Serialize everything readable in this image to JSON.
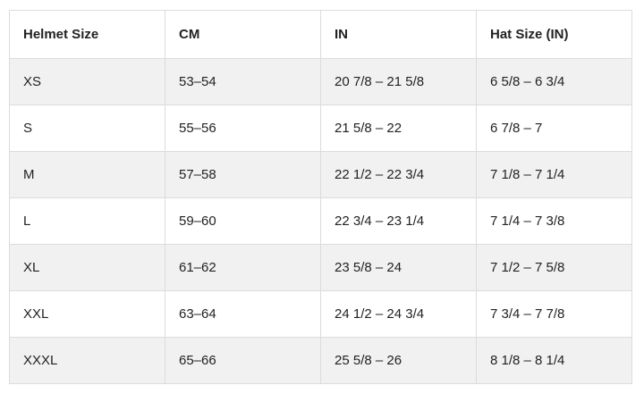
{
  "table": {
    "headers": [
      "Helmet Size",
      "CM",
      "IN",
      "Hat Size (IN)"
    ],
    "rows": [
      [
        "XS",
        "53–54",
        "20 7/8 – 21 5/8",
        "6 5/8 – 6 3/4"
      ],
      [
        "S",
        "55–56",
        "21 5/8 – 22",
        "6 7/8 – 7"
      ],
      [
        "M",
        "57–58",
        "22 1/2 – 22 3/4",
        "7 1/8 – 7 1/4"
      ],
      [
        "L",
        "59–60",
        "22 3/4 – 23 1/4",
        "7 1/4 – 7 3/8"
      ],
      [
        "XL",
        "61–62",
        "23 5/8 – 24",
        "7 1/2 – 7 5/8"
      ],
      [
        "XXL",
        "63–64",
        "24 1/2 – 24 3/4",
        "7 3/4 – 7 7/8"
      ],
      [
        "XXXL",
        "65–66",
        "25 5/8 – 26",
        "8 1/8 – 8 1/4"
      ]
    ]
  },
  "colors": {
    "stripe": "#f1f1f1",
    "border": "#dcdcdc",
    "text": "#222222"
  }
}
